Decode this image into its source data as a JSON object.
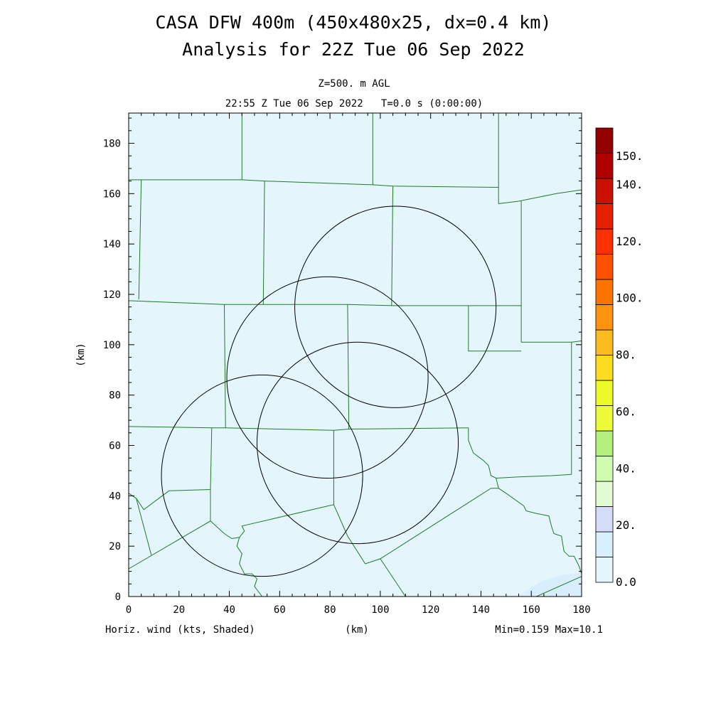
{
  "chart_data": {
    "type": "heatmap",
    "title": "CASA DFW 400m (450x480x25, dx=0.4 km)",
    "subtitle": "Analysis for 22Z Tue 06 Sep 2022",
    "level_label": "Z=500. m AGL",
    "time_label": "22:55 Z Tue 06 Sep 2022   T=0.0 s (0:00:00)",
    "xlabel": "(km)",
    "ylabel": "(km)",
    "xlim": [
      0,
      180
    ],
    "ylim": [
      0,
      192
    ],
    "x_ticks": [
      0,
      20,
      40,
      60,
      80,
      100,
      120,
      140,
      160,
      180
    ],
    "y_ticks": [
      0,
      20,
      40,
      60,
      80,
      100,
      120,
      140,
      160,
      180
    ],
    "field_label": "Horiz. wind (kts, Shaded)",
    "min_max_label": "Min=0.159 Max=10.1",
    "field_fill": "#e4f6fc",
    "colorbar": {
      "range": [
        0,
        160
      ],
      "labels": [
        "0.0",
        "20.",
        "40.",
        "60.",
        "80.",
        "100.",
        "120.",
        "140.",
        "150."
      ],
      "colors": [
        "#e4f6fc",
        "#d8f0fc",
        "#d4dcf8",
        "#e4fcd4",
        "#d0fcb0",
        "#b4f080",
        "#ecfc38",
        "#ecf828",
        "#fcdc20",
        "#fcbc20",
        "#fc9410",
        "#fc7400",
        "#fc5000",
        "#fc3000",
        "#e42000",
        "#cc1000",
        "#b00000",
        "#940000"
      ]
    },
    "radars": [
      {
        "cx": 53,
        "cy": 48,
        "r": 40
      },
      {
        "cx": 79,
        "cy": 87,
        "r": 40
      },
      {
        "cx": 91,
        "cy": 61,
        "r": 40
      },
      {
        "cx": 106,
        "cy": 115,
        "r": 40
      }
    ],
    "county_lines": [
      [
        [
          0,
          165.5
        ],
        [
          5,
          165.5
        ],
        [
          45,
          165.5
        ],
        [
          54,
          165
        ],
        [
          97,
          163.5
        ],
        [
          105,
          163
        ],
        [
          147,
          162.5
        ]
      ],
      [
        [
          45,
          192
        ],
        [
          45,
          165.5
        ]
      ],
      [
        [
          97,
          192
        ],
        [
          97,
          163.5
        ]
      ],
      [
        [
          147,
          192
        ],
        [
          147,
          156
        ]
      ],
      [
        [
          147,
          156
        ],
        [
          155,
          157
        ],
        [
          160,
          158
        ],
        [
          170,
          160
        ],
        [
          180,
          161.5
        ]
      ],
      [
        [
          5,
          165.5
        ],
        [
          4,
          118
        ]
      ],
      [
        [
          0,
          117.5
        ],
        [
          38,
          116
        ],
        [
          54,
          116
        ],
        [
          87,
          116
        ],
        [
          105,
          115.5
        ],
        [
          135,
          115.5
        ],
        [
          156,
          115.5
        ]
      ],
      [
        [
          54,
          165
        ],
        [
          53.5,
          116
        ]
      ],
      [
        [
          105,
          163
        ],
        [
          104.5,
          115.5
        ]
      ],
      [
        [
          156,
          157
        ],
        [
          156,
          115.5
        ],
        [
          156,
          101
        ]
      ],
      [
        [
          156,
          101
        ],
        [
          176,
          101
        ],
        [
          180,
          101.5
        ]
      ],
      [
        [
          176,
          101
        ],
        [
          176,
          48.5
        ]
      ],
      [
        [
          135,
          115.5
        ],
        [
          135,
          97.5
        ],
        [
          156,
          97.5
        ]
      ],
      [
        [
          38,
          116
        ],
        [
          38.5,
          67
        ]
      ],
      [
        [
          87,
          116
        ],
        [
          87.5,
          66.5
        ]
      ],
      [
        [
          0,
          67.5
        ],
        [
          33,
          67
        ],
        [
          38.5,
          67
        ],
        [
          81.5,
          66
        ],
        [
          87.5,
          66.5
        ],
        [
          135,
          67
        ]
      ],
      [
        [
          135,
          67
        ],
        [
          135,
          62
        ],
        [
          137,
          57
        ],
        [
          141,
          54
        ],
        [
          143,
          52
        ],
        [
          144,
          48
        ],
        [
          146,
          47
        ],
        [
          155,
          47.5
        ],
        [
          168,
          48
        ],
        [
          176,
          48.5
        ]
      ],
      [
        [
          146,
          47
        ],
        [
          147,
          43
        ],
        [
          150,
          41
        ],
        [
          157,
          36
        ],
        [
          158,
          34
        ],
        [
          162,
          33
        ],
        [
          167,
          32
        ],
        [
          168,
          28
        ],
        [
          169,
          25
        ],
        [
          172,
          24
        ],
        [
          173,
          18
        ],
        [
          175,
          16
        ],
        [
          177,
          16
        ],
        [
          179,
          12
        ],
        [
          180,
          9
        ]
      ],
      [
        [
          33,
          67
        ],
        [
          32.5,
          42.5
        ],
        [
          16,
          42
        ],
        [
          6,
          34.5
        ],
        [
          3,
          39
        ],
        [
          0,
          41
        ]
      ],
      [
        [
          32.5,
          42.5
        ],
        [
          32.5,
          30
        ]
      ],
      [
        [
          0,
          11
        ],
        [
          32.5,
          30
        ],
        [
          38,
          25
        ],
        [
          41,
          23
        ],
        [
          44,
          23.5
        ],
        [
          46,
          26
        ],
        [
          45,
          28
        ],
        [
          81.5,
          36.5
        ],
        [
          81.5,
          66
        ]
      ],
      [
        [
          3,
          39
        ],
        [
          9,
          16.5
        ]
      ],
      [
        [
          44,
          23.5
        ],
        [
          43,
          20
        ],
        [
          45,
          17
        ],
        [
          44,
          13
        ],
        [
          46,
          9
        ],
        [
          49,
          9
        ],
        [
          51,
          7
        ],
        [
          50,
          4
        ],
        [
          53,
          0
        ]
      ],
      [
        [
          81.5,
          36.5
        ],
        [
          87,
          24
        ],
        [
          94,
          13
        ]
      ],
      [
        [
          94,
          13
        ],
        [
          100,
          15
        ],
        [
          144,
          43
        ],
        [
          147,
          43
        ]
      ],
      [
        [
          100,
          15
        ],
        [
          110,
          0
        ]
      ],
      [
        [
          162,
          0
        ],
        [
          180,
          8
        ]
      ]
    ],
    "low_patch": [
      [
        159,
        3
      ],
      [
        165,
        6.5
      ],
      [
        172,
        8.5
      ],
      [
        180,
        9.5
      ],
      [
        180,
        0
      ],
      [
        155,
        0
      ]
    ]
  }
}
